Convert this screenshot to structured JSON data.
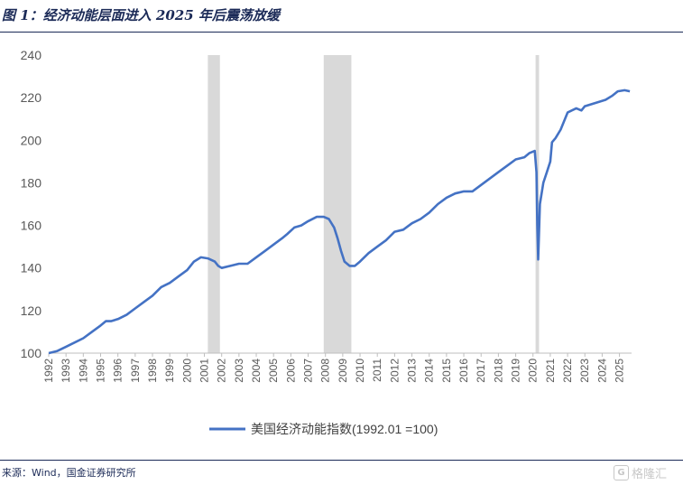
{
  "header": {
    "title": "图 1：经济动能层面进入 2025 年后震荡放缓"
  },
  "footer": {
    "source": "来源：Wind，国金证券研究所",
    "watermark": "格隆汇"
  },
  "chart_data": {
    "type": "line",
    "title": "",
    "xlabel": "",
    "ylabel": "",
    "ylim": [
      100,
      240
    ],
    "xlim": [
      1992.0,
      2025.7
    ],
    "y_ticks": [
      100,
      120,
      140,
      160,
      180,
      200,
      220,
      240
    ],
    "x_tick_labels": [
      "1992",
      "1993",
      "1994",
      "1995",
      "1996",
      "1997",
      "1998",
      "1999",
      "2000",
      "2001",
      "2002",
      "2003",
      "2004",
      "2005",
      "2006",
      "2007",
      "2008",
      "2009",
      "2010",
      "2011",
      "2012",
      "2013",
      "2014",
      "2015",
      "2016",
      "2017",
      "2018",
      "2019",
      "2020",
      "2021",
      "2022",
      "2023",
      "2024",
      "2025"
    ],
    "grid": false,
    "legend_position": "bottom",
    "colors": {
      "line": "#4472c4",
      "recession": "#d9d9d9"
    },
    "recession_bands": [
      {
        "start": 2001.2,
        "end": 2001.9
      },
      {
        "start": 2007.9,
        "end": 2009.5
      },
      {
        "start": 2020.15,
        "end": 2020.35
      }
    ],
    "series": [
      {
        "name": "美国经济动能指数(1992.01 =100)",
        "points": [
          [
            1992.0,
            100
          ],
          [
            1992.5,
            101
          ],
          [
            1993.0,
            103
          ],
          [
            1993.5,
            105
          ],
          [
            1994.0,
            107
          ],
          [
            1994.5,
            110
          ],
          [
            1995.0,
            113
          ],
          [
            1995.3,
            115
          ],
          [
            1995.6,
            115
          ],
          [
            1996.0,
            116
          ],
          [
            1996.5,
            118
          ],
          [
            1997.0,
            121
          ],
          [
            1997.5,
            124
          ],
          [
            1998.0,
            127
          ],
          [
            1998.5,
            131
          ],
          [
            1999.0,
            133
          ],
          [
            1999.5,
            136
          ],
          [
            2000.0,
            139
          ],
          [
            2000.4,
            143
          ],
          [
            2000.8,
            145
          ],
          [
            2001.2,
            144.5
          ],
          [
            2001.6,
            143
          ],
          [
            2001.8,
            141
          ],
          [
            2002.0,
            140
          ],
          [
            2002.5,
            141
          ],
          [
            2003.0,
            142
          ],
          [
            2003.5,
            142
          ],
          [
            2004.0,
            145
          ],
          [
            2004.5,
            148
          ],
          [
            2005.0,
            151
          ],
          [
            2005.5,
            154
          ],
          [
            2005.8,
            156
          ],
          [
            2006.2,
            159
          ],
          [
            2006.6,
            160
          ],
          [
            2007.0,
            162
          ],
          [
            2007.5,
            164
          ],
          [
            2007.9,
            164
          ],
          [
            2008.2,
            163
          ],
          [
            2008.5,
            159
          ],
          [
            2008.7,
            154
          ],
          [
            2008.9,
            148
          ],
          [
            2009.1,
            143
          ],
          [
            2009.4,
            141
          ],
          [
            2009.7,
            141
          ],
          [
            2010.0,
            143
          ],
          [
            2010.5,
            147
          ],
          [
            2011.0,
            150
          ],
          [
            2011.5,
            153
          ],
          [
            2012.0,
            157
          ],
          [
            2012.5,
            158
          ],
          [
            2013.0,
            161
          ],
          [
            2013.5,
            163
          ],
          [
            2014.0,
            166
          ],
          [
            2014.5,
            170
          ],
          [
            2015.0,
            173
          ],
          [
            2015.5,
            175
          ],
          [
            2016.0,
            176
          ],
          [
            2016.5,
            176
          ],
          [
            2017.0,
            179
          ],
          [
            2017.5,
            182
          ],
          [
            2018.0,
            185
          ],
          [
            2018.5,
            188
          ],
          [
            2019.0,
            191
          ],
          [
            2019.5,
            192
          ],
          [
            2019.8,
            194
          ],
          [
            2020.1,
            195
          ],
          [
            2020.2,
            185
          ],
          [
            2020.25,
            160
          ],
          [
            2020.3,
            144
          ],
          [
            2020.4,
            170
          ],
          [
            2020.6,
            180
          ],
          [
            2020.8,
            185
          ],
          [
            2021.0,
            190
          ],
          [
            2021.1,
            199
          ],
          [
            2021.3,
            201
          ],
          [
            2021.6,
            205
          ],
          [
            2022.0,
            213
          ],
          [
            2022.5,
            215
          ],
          [
            2022.8,
            214
          ],
          [
            2023.0,
            216
          ],
          [
            2023.4,
            217
          ],
          [
            2023.8,
            218
          ],
          [
            2024.2,
            219
          ],
          [
            2024.6,
            221
          ],
          [
            2024.9,
            223
          ],
          [
            2025.3,
            223.5
          ],
          [
            2025.6,
            223
          ]
        ]
      }
    ]
  }
}
